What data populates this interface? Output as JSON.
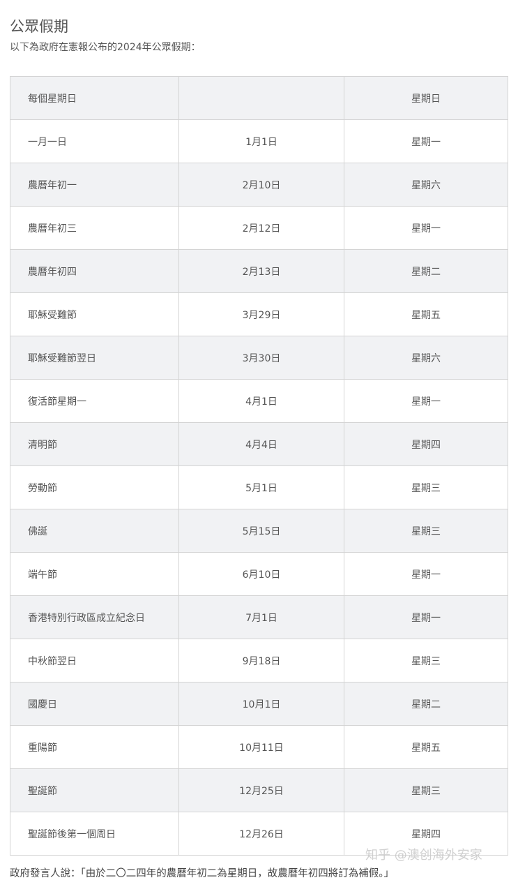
{
  "title": "公眾假期",
  "subtitle": "以下為政府在憲報公布的2024年公眾假期：",
  "rows": [
    [
      "每個星期日",
      "",
      "星期日"
    ],
    [
      "一月一日",
      "1月1日",
      "星期一"
    ],
    [
      "農曆年初一",
      "2月10日",
      "星期六"
    ],
    [
      "農曆年初三",
      "2月12日",
      "星期一"
    ],
    [
      "農曆年初四",
      "2月13日",
      "星期二"
    ],
    [
      "耶穌受難節",
      "3月29日",
      "星期五"
    ],
    [
      "耶穌受難節翌日",
      "3月30日",
      "星期六"
    ],
    [
      "復活節星期一",
      "4月1日",
      "星期一"
    ],
    [
      "清明節",
      "4月4日",
      "星期四"
    ],
    [
      "勞動節",
      "5月1日",
      "星期三"
    ],
    [
      "佛誕",
      "5月15日",
      "星期三"
    ],
    [
      "端午節",
      "6月10日",
      "星期一"
    ],
    [
      "香港特別行政區成立紀念日",
      "7月1日",
      "星期一"
    ],
    [
      "中秋節翌日",
      "9月18日",
      "星期三"
    ],
    [
      "國慶日",
      "10月1日",
      "星期二"
    ],
    [
      "重陽節",
      "10月11日",
      "星期五"
    ],
    [
      "聖誕節",
      "12月25日",
      "星期三"
    ],
    [
      "聖誕節後第一個周日",
      "12月26日",
      "星期四"
    ]
  ],
  "footer": "政府發言人說：「由於二〇二四年的農曆年初二為星期日，故農曆年初四將訂為補假。」",
  "watermark": "知乎 @澳创海外安家"
}
